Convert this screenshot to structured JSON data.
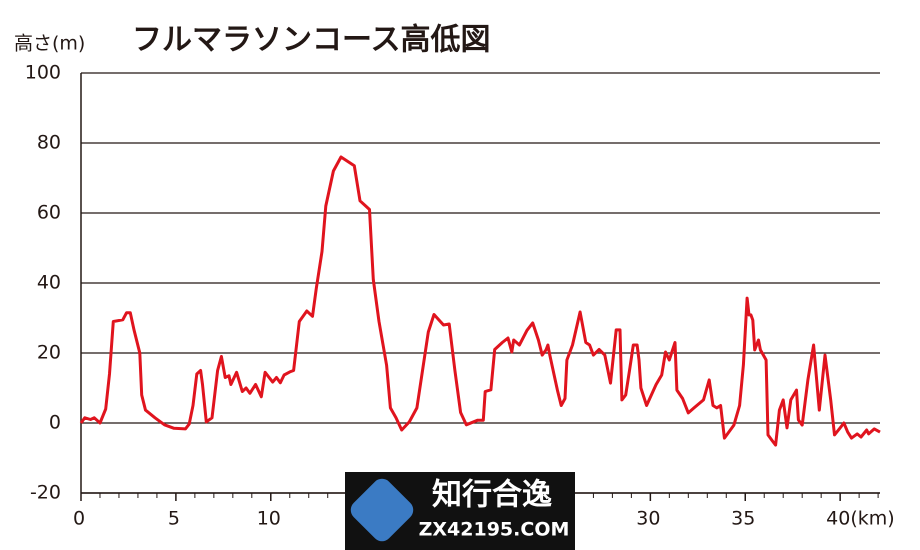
{
  "chart_data": {
    "type": "line",
    "title": "フルマラソンコース高低図",
    "y_label": "高さ(m)",
    "x": [
      0,
      0.2,
      0.5,
      0.7,
      1.0,
      1.3,
      1.5,
      1.7,
      2.2,
      2.4,
      2.6,
      2.8,
      3.1,
      3.2,
      3.4,
      3.9,
      4.4,
      4.9,
      5.5,
      5.7,
      5.9,
      6.1,
      6.3,
      6.4,
      6.6,
      6.9,
      7.2,
      7.4,
      7.6,
      7.8,
      7.9,
      8.2,
      8.5,
      8.7,
      8.9,
      9.2,
      9.5,
      9.7,
      10.1,
      10.3,
      10.5,
      10.7,
      11.0,
      11.2,
      11.5,
      11.9,
      12.2,
      12.4,
      12.7,
      12.9,
      13.3,
      13.7,
      14.4,
      14.7,
      15.0,
      15.2,
      15.4,
      15.7,
      16.1,
      16.3,
      16.6,
      16.9,
      17.3,
      17.7,
      18.3,
      18.6,
      19.1,
      19.4,
      19.7,
      20.0,
      20.3,
      20.9,
      21.2,
      21.3,
      21.6,
      21.8,
      22.2,
      22.5,
      22.7,
      22.8,
      23.1,
      23.5,
      23.8,
      24.1,
      24.3,
      24.5,
      24.6,
      24.7,
      25.1,
      25.3,
      25.5,
      25.6,
      25.9,
      26.3,
      26.6,
      26.8,
      27.0,
      27.3,
      27.6,
      27.9,
      28.2,
      28.4,
      28.5,
      28.7,
      28.9,
      29.1,
      29.3,
      29.4,
      29.5,
      29.8,
      30.3,
      30.6,
      30.8,
      31.0,
      31.3,
      31.4,
      31.7,
      32.0,
      32.3,
      32.8,
      33.1,
      33.3,
      33.5,
      33.7,
      33.9,
      34.4,
      34.7,
      34.9,
      35.1,
      35.2,
      35.3,
      35.4,
      35.5,
      35.7,
      35.8,
      36.1,
      36.2,
      36.4,
      36.6,
      36.8,
      37.0,
      37.2,
      37.4,
      37.7,
      37.8,
      38.0,
      38.3,
      38.6,
      38.9,
      39.2,
      39.5,
      39.7,
      40.0,
      40.2,
      40.4,
      40.6,
      40.9,
      41.1,
      41.4,
      41.5,
      41.8,
      42.1
    ],
    "series": [
      {
        "color": "#e0141e",
        "values": [
          0,
          1.5,
          1,
          1.5,
          0,
          4,
          14,
          29,
          29.5,
          31.5,
          31.5,
          26.5,
          20,
          8,
          3.7,
          1.5,
          -0.5,
          -1.5,
          -1.7,
          -0.3,
          5,
          14,
          15,
          11,
          0.3,
          1.5,
          15,
          19,
          13,
          13.5,
          11,
          14.5,
          9,
          10,
          8.5,
          11,
          7.5,
          14.5,
          11.7,
          13,
          11.5,
          13.7,
          14.6,
          15,
          29,
          32,
          30.5,
          38.5,
          49,
          62,
          72,
          76,
          73.5,
          63.5,
          62,
          61,
          41,
          29,
          16.5,
          4.3,
          1.5,
          -2,
          0.3,
          4.3,
          26,
          31,
          28,
          28.3,
          15,
          3,
          -0.5,
          0.8,
          0.8,
          9,
          9.5,
          21,
          23,
          24.3,
          20.3,
          23.7,
          22.3,
          26.5,
          28.6,
          23.7,
          19.4,
          20.9,
          22.3,
          19.4,
          9.4,
          5,
          7,
          18,
          22.3,
          31.7,
          23,
          22.3,
          19.4,
          21,
          19.4,
          11.4,
          26.6,
          26.6,
          6.6,
          8,
          15,
          22.3,
          22.3,
          18,
          10,
          5,
          11,
          13.7,
          20.3,
          18,
          23,
          9.4,
          7,
          2.9,
          4.3,
          6.6,
          12.3,
          5,
          4.3,
          5,
          -4.3,
          -0.6,
          5,
          16.6,
          35.7,
          30.9,
          30.9,
          29.4,
          20.9,
          23.7,
          20.9,
          18,
          -3.4,
          -4.9,
          -6.3,
          3.7,
          6.6,
          -1.4,
          6.6,
          9.4,
          0.9,
          -0.6,
          12.3,
          22.3,
          3.7,
          19.4,
          6.6,
          -3.4,
          -1.4,
          0,
          -2.6,
          -4.3,
          -3.1,
          -4,
          -2,
          -3.1,
          -1.7,
          -2.6
        ]
      }
    ],
    "xlim": [
      0,
      42.1
    ],
    "xticks": [
      0,
      5,
      10,
      30,
      35,
      {
        "value": 40,
        "label": "40(km)"
      }
    ],
    "xminorticks": [
      1,
      2,
      3,
      4,
      6,
      7,
      8,
      9,
      11,
      12,
      13,
      14,
      15,
      16,
      17,
      18,
      19,
      20,
      21,
      22,
      23,
      24,
      25,
      26,
      27,
      28,
      29,
      31,
      32,
      33,
      34,
      36,
      37,
      38,
      39,
      41,
      42
    ],
    "ylim": [
      -20,
      100
    ],
    "yticks": [
      -20,
      0,
      20,
      40,
      60,
      80,
      100
    ],
    "grid": true
  },
  "watermark": {
    "title": "知行合逸",
    "subtitle": "ZX42195.COM"
  }
}
